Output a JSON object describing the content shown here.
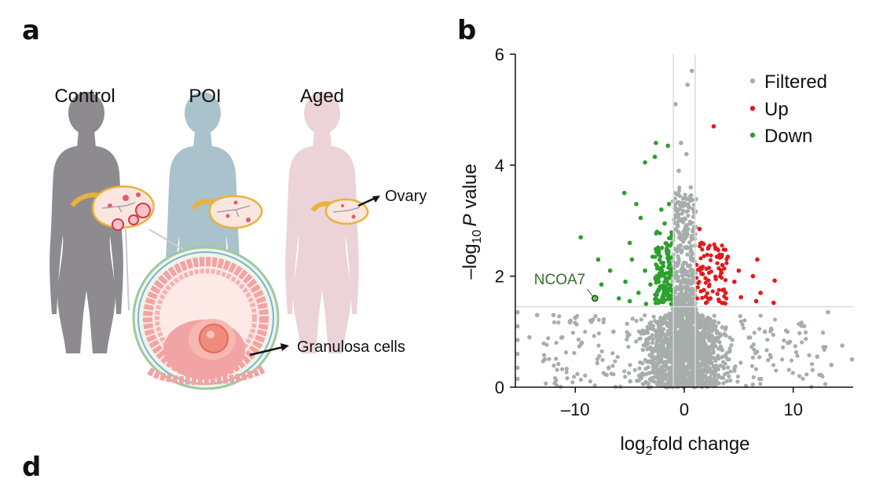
{
  "panels": {
    "a": "a",
    "b": "b",
    "d": "d"
  },
  "illustration": {
    "groups": [
      "Control",
      "POI",
      "Aged"
    ],
    "ovary_label": "Ovary",
    "granulosa_label": "Granulosa cells",
    "colors": {
      "control": "#8d8b90",
      "poi": "#a9c2cb",
      "aged": "#ecd3d8",
      "ovary_fill": "#fbe6df",
      "ovary_edge": "#e9b23a",
      "follicle_cells": "#f2a3a3",
      "oocyte": "#f08c7c"
    }
  },
  "chart_data": {
    "type": "scatter",
    "xlabel_prefix": "log",
    "xlabel_sub": "2",
    "xlabel_suffix": "fold change",
    "ylabel_prefix": "–log",
    "ylabel_sub": "10",
    "ylabel_italic": "P",
    "ylabel_suffix": " value",
    "xlim": [
      -15.5,
      15.5
    ],
    "ylim": [
      0,
      6
    ],
    "xticks": [
      -10,
      0,
      10
    ],
    "xtick_labels": [
      "–10",
      "0",
      "10"
    ],
    "yticks": [
      0,
      2,
      4,
      6
    ],
    "ytick_labels": [
      "0",
      "2",
      "4",
      "6"
    ],
    "threshold_x": [
      -1,
      1
    ],
    "threshold_y": 1.45,
    "legend": [
      {
        "label": "Filtered",
        "color": "#a6adab"
      },
      {
        "label": "Up",
        "color": "#e31a1c"
      },
      {
        "label": "Down",
        "color": "#2ca02c"
      }
    ],
    "annotation": {
      "label": "NCOA7",
      "x": -8.2,
      "y": 1.6,
      "color": "#3d6b2a"
    },
    "series": [
      {
        "name": "Up",
        "color": "#e31a1c",
        "points": [
          [
            2.7,
            4.7
          ],
          [
            1.4,
            2.85
          ],
          [
            1.6,
            2.6
          ],
          [
            2.2,
            2.5
          ],
          [
            3.0,
            2.35
          ],
          [
            4.0,
            2.35
          ],
          [
            6.7,
            2.3
          ],
          [
            5.0,
            2.1
          ],
          [
            6.3,
            2.0
          ],
          [
            8.3,
            1.92
          ],
          [
            7.0,
            1.7
          ],
          [
            6.6,
            1.55
          ],
          [
            8.2,
            1.52
          ],
          [
            3.5,
            2.2
          ],
          [
            4.6,
            1.9
          ],
          [
            1.8,
            1.75
          ],
          [
            2.4,
            1.6
          ],
          [
            3.2,
            1.55
          ],
          [
            5.2,
            1.62
          ],
          [
            2.9,
            1.95
          ],
          [
            1.5,
            2.15
          ],
          [
            3.8,
            1.7
          ]
        ]
      },
      {
        "name": "Down",
        "color": "#2ca02c",
        "points": [
          [
            -2.6,
            4.4
          ],
          [
            -1.5,
            4.35
          ],
          [
            -2.7,
            4.15
          ],
          [
            -3.6,
            4.05
          ],
          [
            -5.5,
            3.5
          ],
          [
            -4.4,
            3.3
          ],
          [
            -2.1,
            3.2
          ],
          [
            -1.4,
            3.3
          ],
          [
            -4.0,
            3.05
          ],
          [
            -2.5,
            2.8
          ],
          [
            -1.8,
            2.95
          ],
          [
            -5.0,
            2.6
          ],
          [
            -9.5,
            2.7
          ],
          [
            -4.8,
            2.3
          ],
          [
            -3.6,
            2.1
          ],
          [
            -7.9,
            2.3
          ],
          [
            -1.3,
            2.55
          ],
          [
            -6.8,
            2.1
          ],
          [
            -2.2,
            2.0
          ],
          [
            -5.4,
            1.9
          ],
          [
            -3.1,
            1.85
          ],
          [
            -7.6,
            1.85
          ],
          [
            -1.8,
            1.75
          ],
          [
            -4.2,
            1.7
          ],
          [
            -2.6,
            1.6
          ],
          [
            -6.0,
            1.6
          ],
          [
            -3.5,
            1.5
          ],
          [
            -1.2,
            1.5
          ],
          [
            -5.0,
            1.55
          ],
          [
            -2.9,
            2.35
          ]
        ]
      },
      {
        "name": "Filtered",
        "color": "#a6adab",
        "points": [
          [
            0.7,
            5.7
          ],
          [
            0.3,
            5.45
          ],
          [
            -0.8,
            5.1
          ],
          [
            -0.3,
            4.4
          ],
          [
            0.2,
            4.2
          ],
          [
            -0.5,
            3.9
          ],
          [
            0.6,
            3.6
          ],
          [
            -0.1,
            3.4
          ],
          [
            0.9,
            3.15
          ],
          [
            -0.6,
            2.9
          ],
          [
            -12.0,
            1.3
          ],
          [
            -10.0,
            1.25
          ],
          [
            -13.5,
            1.3
          ],
          [
            -8.6,
            1.2
          ],
          [
            -14.2,
            0.9
          ],
          [
            -11.2,
            0.9
          ],
          [
            -9.4,
            0.8
          ],
          [
            -12.8,
            0.5
          ],
          [
            -6.5,
            1.0
          ],
          [
            13.2,
            1.35
          ],
          [
            11.0,
            1.1
          ],
          [
            14.5,
            0.75
          ],
          [
            9.5,
            0.8
          ],
          [
            12.2,
            0.55
          ],
          [
            7.4,
            1.0
          ],
          [
            13.5,
            0.4
          ],
          [
            -15.3,
            1.35
          ],
          [
            -15.3,
            1.1
          ],
          [
            -15.3,
            0.85
          ],
          [
            -15.3,
            0.6
          ],
          [
            -15.3,
            0.35
          ],
          [
            -15.3,
            0.15
          ],
          [
            15.4,
            0.5
          ]
        ]
      }
    ]
  }
}
